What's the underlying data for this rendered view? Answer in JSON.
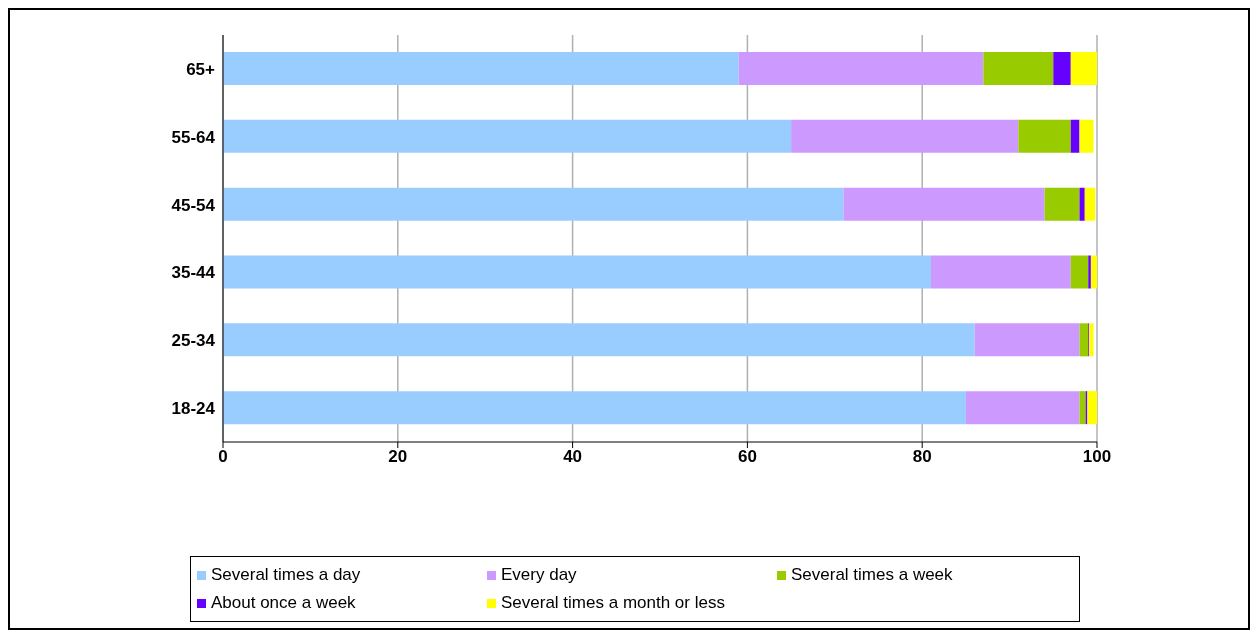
{
  "chart_data": {
    "type": "bar",
    "orientation": "horizontal",
    "stacked": true,
    "categories": [
      "65+",
      "55-64",
      "45-54",
      "35-44",
      "25-34",
      "18-24"
    ],
    "series": [
      {
        "name": "Several times a day",
        "color": "#99ccff",
        "values": [
          59,
          65,
          71,
          81,
          86,
          85
        ]
      },
      {
        "name": "Every day",
        "color": "#cc99ff",
        "values": [
          28,
          26,
          23,
          16,
          12,
          13
        ]
      },
      {
        "name": "Several times a week",
        "color": "#99cc00",
        "values": [
          8,
          6,
          4,
          2,
          1,
          0.7
        ]
      },
      {
        "name": "About once a week",
        "color": "#6600ff",
        "values": [
          2,
          1,
          0.6,
          0.3,
          0.1,
          0.2
        ]
      },
      {
        "name": "Several times a month or less",
        "color": "#ffff00",
        "values": [
          3,
          1.6,
          1.2,
          0.7,
          0.5,
          1.1
        ]
      }
    ],
    "xlim": [
      0,
      100
    ],
    "xticks": [
      0,
      20,
      40,
      60,
      80,
      100
    ],
    "grid": "x",
    "legend": "bottom"
  }
}
